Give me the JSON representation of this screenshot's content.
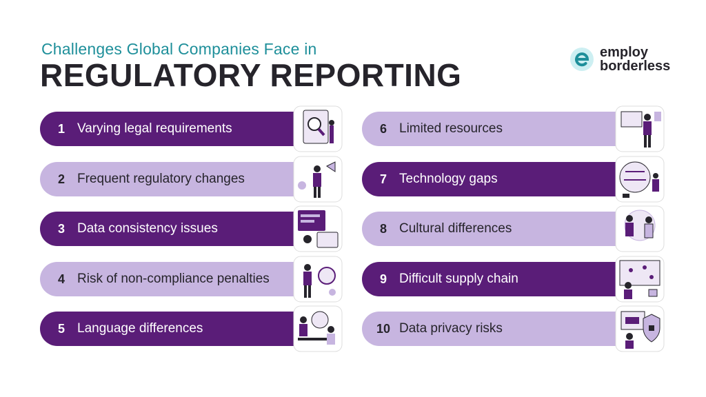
{
  "header": {
    "subtitle": "Challenges Global Companies Face in",
    "title": "REGULATORY REPORTING"
  },
  "logo": {
    "line1": "employ",
    "line2": "borderless"
  },
  "colors": {
    "dark_purple": "#5a1d78",
    "light_purple": "#c7b5e0",
    "teal": "#1e8f9a",
    "text": "#26242b"
  },
  "items": [
    {
      "number": "1",
      "label": "Varying legal requirements",
      "style": "dark"
    },
    {
      "number": "2",
      "label": "Frequent regulatory changes",
      "style": "light"
    },
    {
      "number": "3",
      "label": "Data consistency issues",
      "style": "dark"
    },
    {
      "number": "4",
      "label": "Risk of non-compliance penalties",
      "style": "light"
    },
    {
      "number": "5",
      "label": "Language differences",
      "style": "dark"
    },
    {
      "number": "6",
      "label": "Limited resources",
      "style": "light"
    },
    {
      "number": "7",
      "label": "Technology gaps",
      "style": "dark"
    },
    {
      "number": "8",
      "label": "Cultural differences",
      "style": "light"
    },
    {
      "number": "9",
      "label": "Difficult supply chain",
      "style": "dark"
    },
    {
      "number": "10",
      "label": "Data privacy risks",
      "style": "light"
    }
  ]
}
